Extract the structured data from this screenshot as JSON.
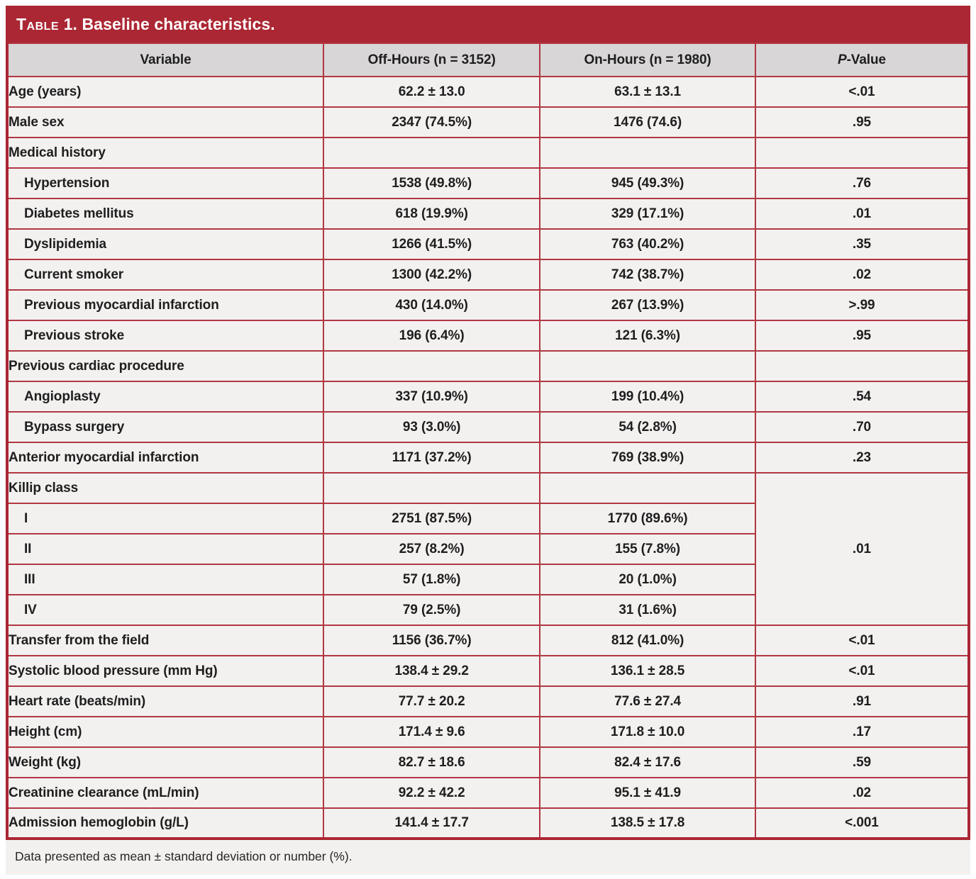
{
  "title": {
    "sc": "Table",
    "rest": " 1. Baseline characteristics."
  },
  "header": {
    "variable": "Variable",
    "off_hours": "Off-Hours (n = 3152)",
    "on_hours": "On-Hours (n = 1980)",
    "p_italic": "P",
    "p_rest": "-Value"
  },
  "colors": {
    "banner_red": "#AB2733",
    "divider_red": "#B23743",
    "header_gray": "#D8D6D6",
    "row_bg": "#F2F1F0",
    "text": "#1F1E1E"
  },
  "table": {
    "rows": [
      {
        "label": "Age (years)",
        "indent": 0,
        "off": "62.2 ± 13.0",
        "on": "63.1 ± 13.1",
        "p": "<.01"
      },
      {
        "label": "Male sex",
        "indent": 0,
        "off": "2347 (74.5%)",
        "on": "1476 (74.6)",
        "p": ".95"
      },
      {
        "label": "Medical history",
        "indent": 0,
        "off": "",
        "on": "",
        "p": ""
      },
      {
        "label": "Hypertension",
        "indent": 1,
        "off": "1538 (49.8%)",
        "on": "945 (49.3%)",
        "p": ".76"
      },
      {
        "label": "Diabetes mellitus",
        "indent": 1,
        "off": "618 (19.9%)",
        "on": "329 (17.1%)",
        "p": ".01"
      },
      {
        "label": "Dyslipidemia",
        "indent": 1,
        "off": "1266 (41.5%)",
        "on": "763 (40.2%)",
        "p": ".35"
      },
      {
        "label": "Current smoker",
        "indent": 1,
        "off": "1300 (42.2%)",
        "on": "742 (38.7%)",
        "p": ".02"
      },
      {
        "label": "Previous myocardial infarction",
        "indent": 1,
        "off": "430 (14.0%)",
        "on": "267 (13.9%)",
        "p": ">.99"
      },
      {
        "label": "Previous stroke",
        "indent": 1,
        "off": "196 (6.4%)",
        "on": "121 (6.3%)",
        "p": ".95"
      },
      {
        "label": "Previous cardiac procedure",
        "indent": 0,
        "off": "",
        "on": "",
        "p": ""
      },
      {
        "label": "Angioplasty",
        "indent": 1,
        "off": "337 (10.9%)",
        "on": "199 (10.4%)",
        "p": ".54"
      },
      {
        "label": "Bypass surgery",
        "indent": 1,
        "off": "93 (3.0%)",
        "on": "54 (2.8%)",
        "p": ".70"
      },
      {
        "label": "Anterior myocardial infarction",
        "indent": 0,
        "off": "1171 (37.2%)",
        "on": "769 (38.9%)",
        "p": ".23"
      },
      {
        "label": "Killip class",
        "indent": 0,
        "off": "",
        "on": "",
        "p": ".01",
        "p_rowspan": 5
      },
      {
        "label": "I",
        "indent": 1,
        "off": "2751 (87.5%)",
        "on": "1770 (89.6%)",
        "p": null
      },
      {
        "label": "II",
        "indent": 1,
        "off": "257 (8.2%)",
        "on": "155 (7.8%)",
        "p": null
      },
      {
        "label": "III",
        "indent": 1,
        "off": "57 (1.8%)",
        "on": "20 (1.0%)",
        "p": null
      },
      {
        "label": "IV",
        "indent": 1,
        "off": "79 (2.5%)",
        "on": "31 (1.6%)",
        "p": null
      },
      {
        "label": "Transfer from the field",
        "indent": 0,
        "off": "1156 (36.7%)",
        "on": "812 (41.0%)",
        "p": "<.01"
      },
      {
        "label": "Systolic blood pressure (mm Hg)",
        "indent": 0,
        "off": "138.4 ± 29.2",
        "on": "136.1 ± 28.5",
        "p": "<.01"
      },
      {
        "label": "Heart rate (beats/min)",
        "indent": 0,
        "off": "77.7 ± 20.2",
        "on": "77.6 ± 27.4",
        "p": ".91"
      },
      {
        "label": "Height (cm)",
        "indent": 0,
        "off": "171.4 ± 9.6",
        "on": "171.8 ± 10.0",
        "p": ".17"
      },
      {
        "label": "Weight (kg)",
        "indent": 0,
        "off": "82.7 ± 18.6",
        "on": "82.4 ± 17.6",
        "p": ".59"
      },
      {
        "label": "Creatinine clearance (mL/min)",
        "indent": 0,
        "off": "92.2 ± 42.2",
        "on": "95.1 ± 41.9",
        "p": ".02"
      },
      {
        "label": "Admission hemoglobin (g/L)",
        "indent": 0,
        "off": "141.4 ± 17.7",
        "on": "138.5 ± 17.8",
        "p": "<.001"
      }
    ]
  },
  "footnote": "Data presented as mean ± standard deviation or number (%)."
}
